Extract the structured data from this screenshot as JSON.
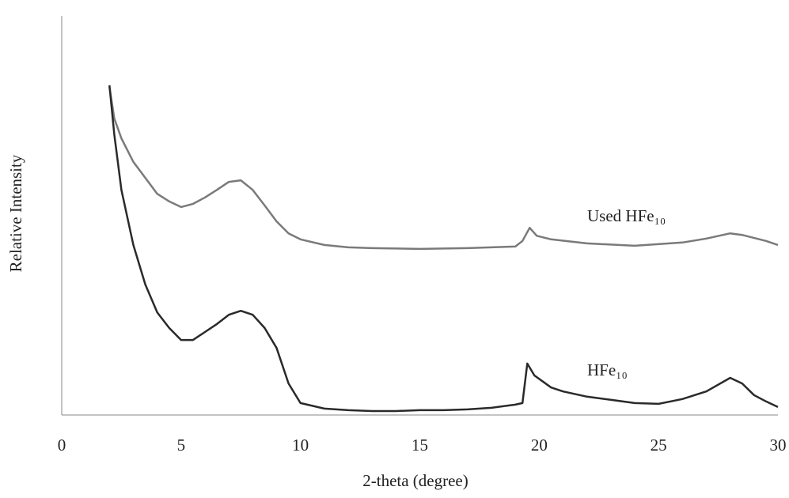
{
  "chart_data": {
    "type": "line",
    "x_label": "2-theta (degree)",
    "y_label": "Relative Intensity",
    "xlim": [
      0,
      30
    ],
    "xticks": [
      0,
      5,
      10,
      15,
      20,
      25,
      30
    ],
    "ylim": [
      0,
      100
    ],
    "grid": false,
    "series": [
      {
        "name": "Used HFe₁₀",
        "color": "#7a7a7a",
        "x": [
          2.0,
          2.2,
          2.5,
          3,
          3.5,
          4,
          4.5,
          5,
          5.5,
          6,
          6.5,
          7,
          7.5,
          8,
          8.5,
          9,
          9.5,
          10,
          11,
          12,
          13,
          15,
          17,
          18,
          19,
          19.3,
          19.6,
          19.9,
          20.5,
          22,
          24,
          26,
          27,
          28,
          28.5,
          29.5,
          30
        ],
        "values": [
          82.2,
          74.3,
          69.3,
          63.4,
          59.4,
          55.4,
          53.5,
          52.1,
          52.9,
          54.5,
          56.4,
          58.4,
          58.8,
          56.4,
          52.5,
          48.5,
          45.5,
          44.0,
          42.6,
          42.0,
          41.8,
          41.6,
          41.8,
          42.0,
          42.2,
          43.6,
          46.9,
          44.9,
          44.0,
          43.0,
          42.4,
          43.2,
          44.2,
          45.5,
          45.1,
          43.6,
          42.6
        ]
      },
      {
        "name": "HFe₁₀",
        "color": "#2a2a2a",
        "x": [
          2.0,
          2.2,
          2.5,
          3,
          3.5,
          4,
          4.5,
          5,
          5.5,
          6,
          6.5,
          7,
          7.5,
          8,
          8.5,
          9,
          9.5,
          10,
          11,
          12,
          13,
          14,
          15,
          16,
          17,
          18,
          19,
          19.3,
          19.5,
          19.8,
          20.5,
          21,
          22,
          23,
          24,
          25,
          26,
          27,
          28,
          28.5,
          29,
          29.5,
          30
        ],
        "values": [
          82.6,
          70.3,
          56.4,
          42.6,
          32.7,
          25.7,
          21.8,
          18.8,
          18.8,
          20.8,
          22.8,
          25.1,
          26.1,
          25.1,
          21.8,
          16.8,
          7.9,
          3.0,
          1.6,
          1.2,
          1.0,
          1.0,
          1.2,
          1.2,
          1.4,
          1.8,
          2.6,
          3.0,
          12.9,
          9.9,
          6.9,
          5.9,
          4.6,
          3.8,
          3.0,
          2.8,
          4.0,
          5.9,
          9.3,
          7.9,
          5.0,
          3.4,
          2.0
        ]
      }
    ]
  }
}
